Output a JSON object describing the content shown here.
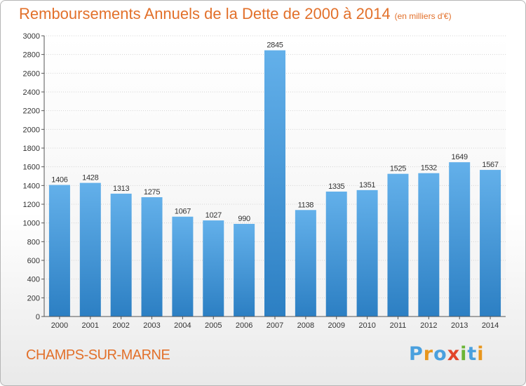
{
  "header": {
    "title": "Remboursements Annuels de la Dette de 2000 à 2014",
    "unit": "(en milliers d'€)"
  },
  "footer": {
    "city": "CHAMPS-SUR-MARNE",
    "logo_text": "Proxiti"
  },
  "colors": {
    "title": "#e2702a",
    "bar_light": "#63b0ea",
    "bar_dark": "#2c7fc3",
    "logo": [
      "#4aa0de",
      "#e8961d",
      "#4aa0de",
      "#e2452a",
      "#6bb536",
      "#4aa0de",
      "#e8961d"
    ]
  },
  "chart_data": {
    "type": "bar",
    "title": "Remboursements Annuels de la Dette de 2000 à 2014",
    "subtitle": "(en milliers d'€)",
    "xlabel": "",
    "ylabel": "",
    "categories": [
      "2000",
      "2001",
      "2002",
      "2003",
      "2004",
      "2005",
      "2006",
      "2007",
      "2008",
      "2009",
      "2010",
      "2011",
      "2012",
      "2013",
      "2014"
    ],
    "values": [
      1406,
      1428,
      1313,
      1275,
      1067,
      1027,
      990,
      2845,
      1138,
      1335,
      1351,
      1525,
      1532,
      1649,
      1567
    ],
    "ylim": [
      0,
      3000
    ],
    "yticks": [
      0,
      200,
      400,
      600,
      800,
      1000,
      1200,
      1400,
      1600,
      1800,
      2000,
      2200,
      2400,
      2600,
      2800,
      3000
    ],
    "grid": true,
    "legend": "none"
  }
}
